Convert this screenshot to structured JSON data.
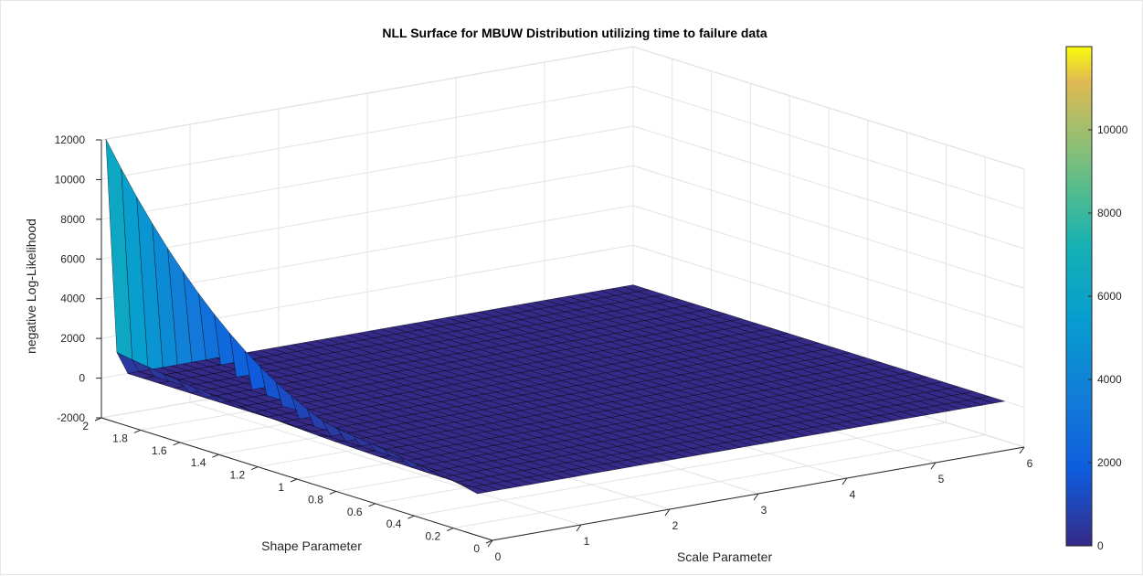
{
  "chart_data": {
    "type": "surface3d",
    "title": "NLL Surface for MBUW Distribution utilizing time to failure data",
    "xlabel": "Scale Parameter",
    "ylabel": "Shape Parameter",
    "zlabel": "negative Log-Likelihood",
    "xlim": [
      0,
      6
    ],
    "ylim": [
      0,
      2
    ],
    "zlim": [
      -2000,
      12000
    ],
    "x_ticks": [
      "0",
      "1",
      "2",
      "3",
      "4",
      "5",
      "6"
    ],
    "y_ticks": [
      "0",
      "0.2",
      "0.4",
      "0.6",
      "0.8",
      "1",
      "1.2",
      "1.4",
      "1.6",
      "1.8",
      "2"
    ],
    "z_ticks": [
      "-2000",
      "0",
      "2000",
      "4000",
      "6000",
      "8000",
      "10000",
      "12000"
    ],
    "grid": true,
    "surface": {
      "x_range": [
        0.05,
        6
      ],
      "y_range": [
        0.1,
        2
      ],
      "peak_value": 12000,
      "peak_at": {
        "x": 0.05,
        "y": 2
      },
      "near_zero_value": 2300,
      "floor_value": 0
    },
    "colorbar": {
      "position": "right",
      "range": [
        0,
        12000
      ],
      "ticks": [
        "0",
        "2000",
        "4000",
        "6000",
        "8000",
        "10000"
      ],
      "colormap": "parula"
    }
  }
}
